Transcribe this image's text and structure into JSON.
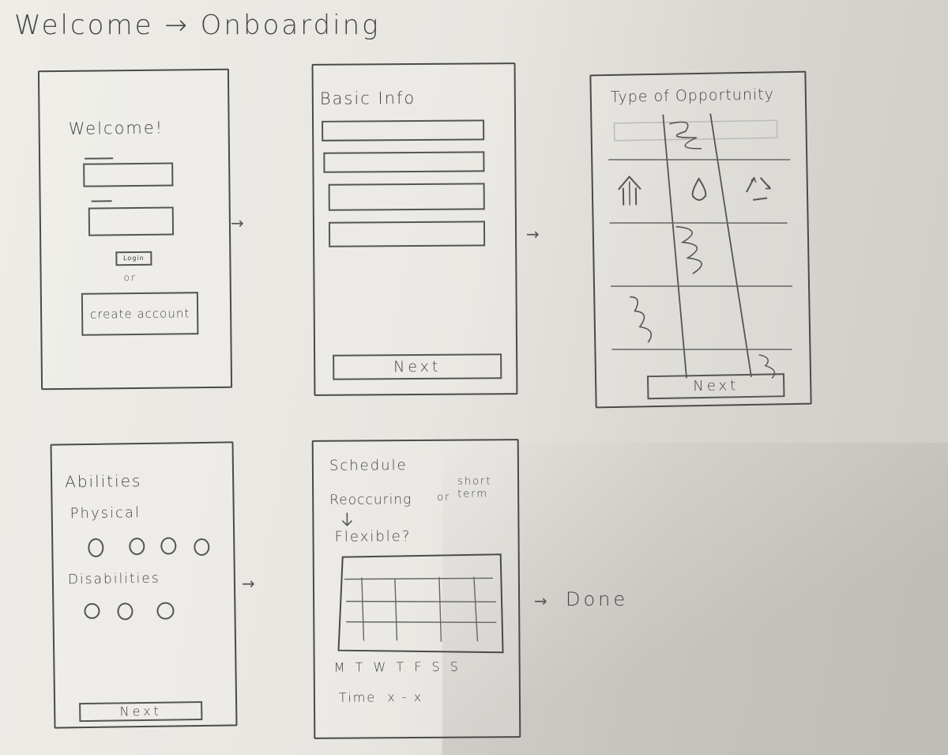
{
  "title": "Welcome → Onboarding",
  "welcome": {
    "heading": "Welcome!",
    "login_label": "Login",
    "or_label": "or",
    "create_account_label": "create account"
  },
  "basic_info": {
    "heading": "Basic Info",
    "next_label": "Next"
  },
  "opportunity": {
    "heading": "Type of Opportunity",
    "next_label": "Next",
    "icons": [
      "house-icon",
      "water-drop-icon",
      "recycle-icon"
    ]
  },
  "abilities": {
    "heading": "Abilities",
    "physical_label": "Physical",
    "disabilities_label": "Disabilities",
    "next_label": "Next"
  },
  "schedule": {
    "heading": "Schedule",
    "reoccurring_label": "Reoccuring",
    "or_label": "or",
    "short_term_label": "short term",
    "flexible_label": "Flexible?",
    "days_label": "M T W T F S S",
    "time_label": "Time  x - x"
  },
  "done_label": "Done"
}
